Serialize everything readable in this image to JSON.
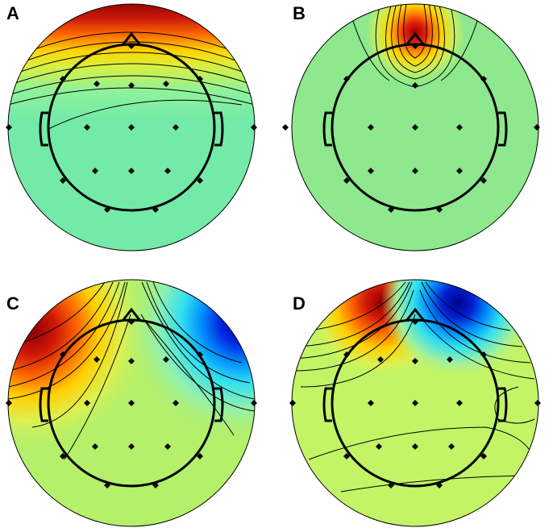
{
  "panels": [
    {
      "label": "A",
      "name": "topomap-a"
    },
    {
      "label": "B",
      "name": "topomap-b"
    },
    {
      "label": "C",
      "name": "topomap-c"
    },
    {
      "label": "D",
      "name": "topomap-d"
    }
  ],
  "colors": {
    "baseline": "#78f0b4",
    "scalp_a": "#74eaa9",
    "scalp_b": "#8de88e",
    "scalp_c": "#b4f06a",
    "scalp_d": "#c2f466",
    "positive_peak": "#8b0000",
    "negative_peak": "#00008b",
    "outline": "#000000"
  }
}
